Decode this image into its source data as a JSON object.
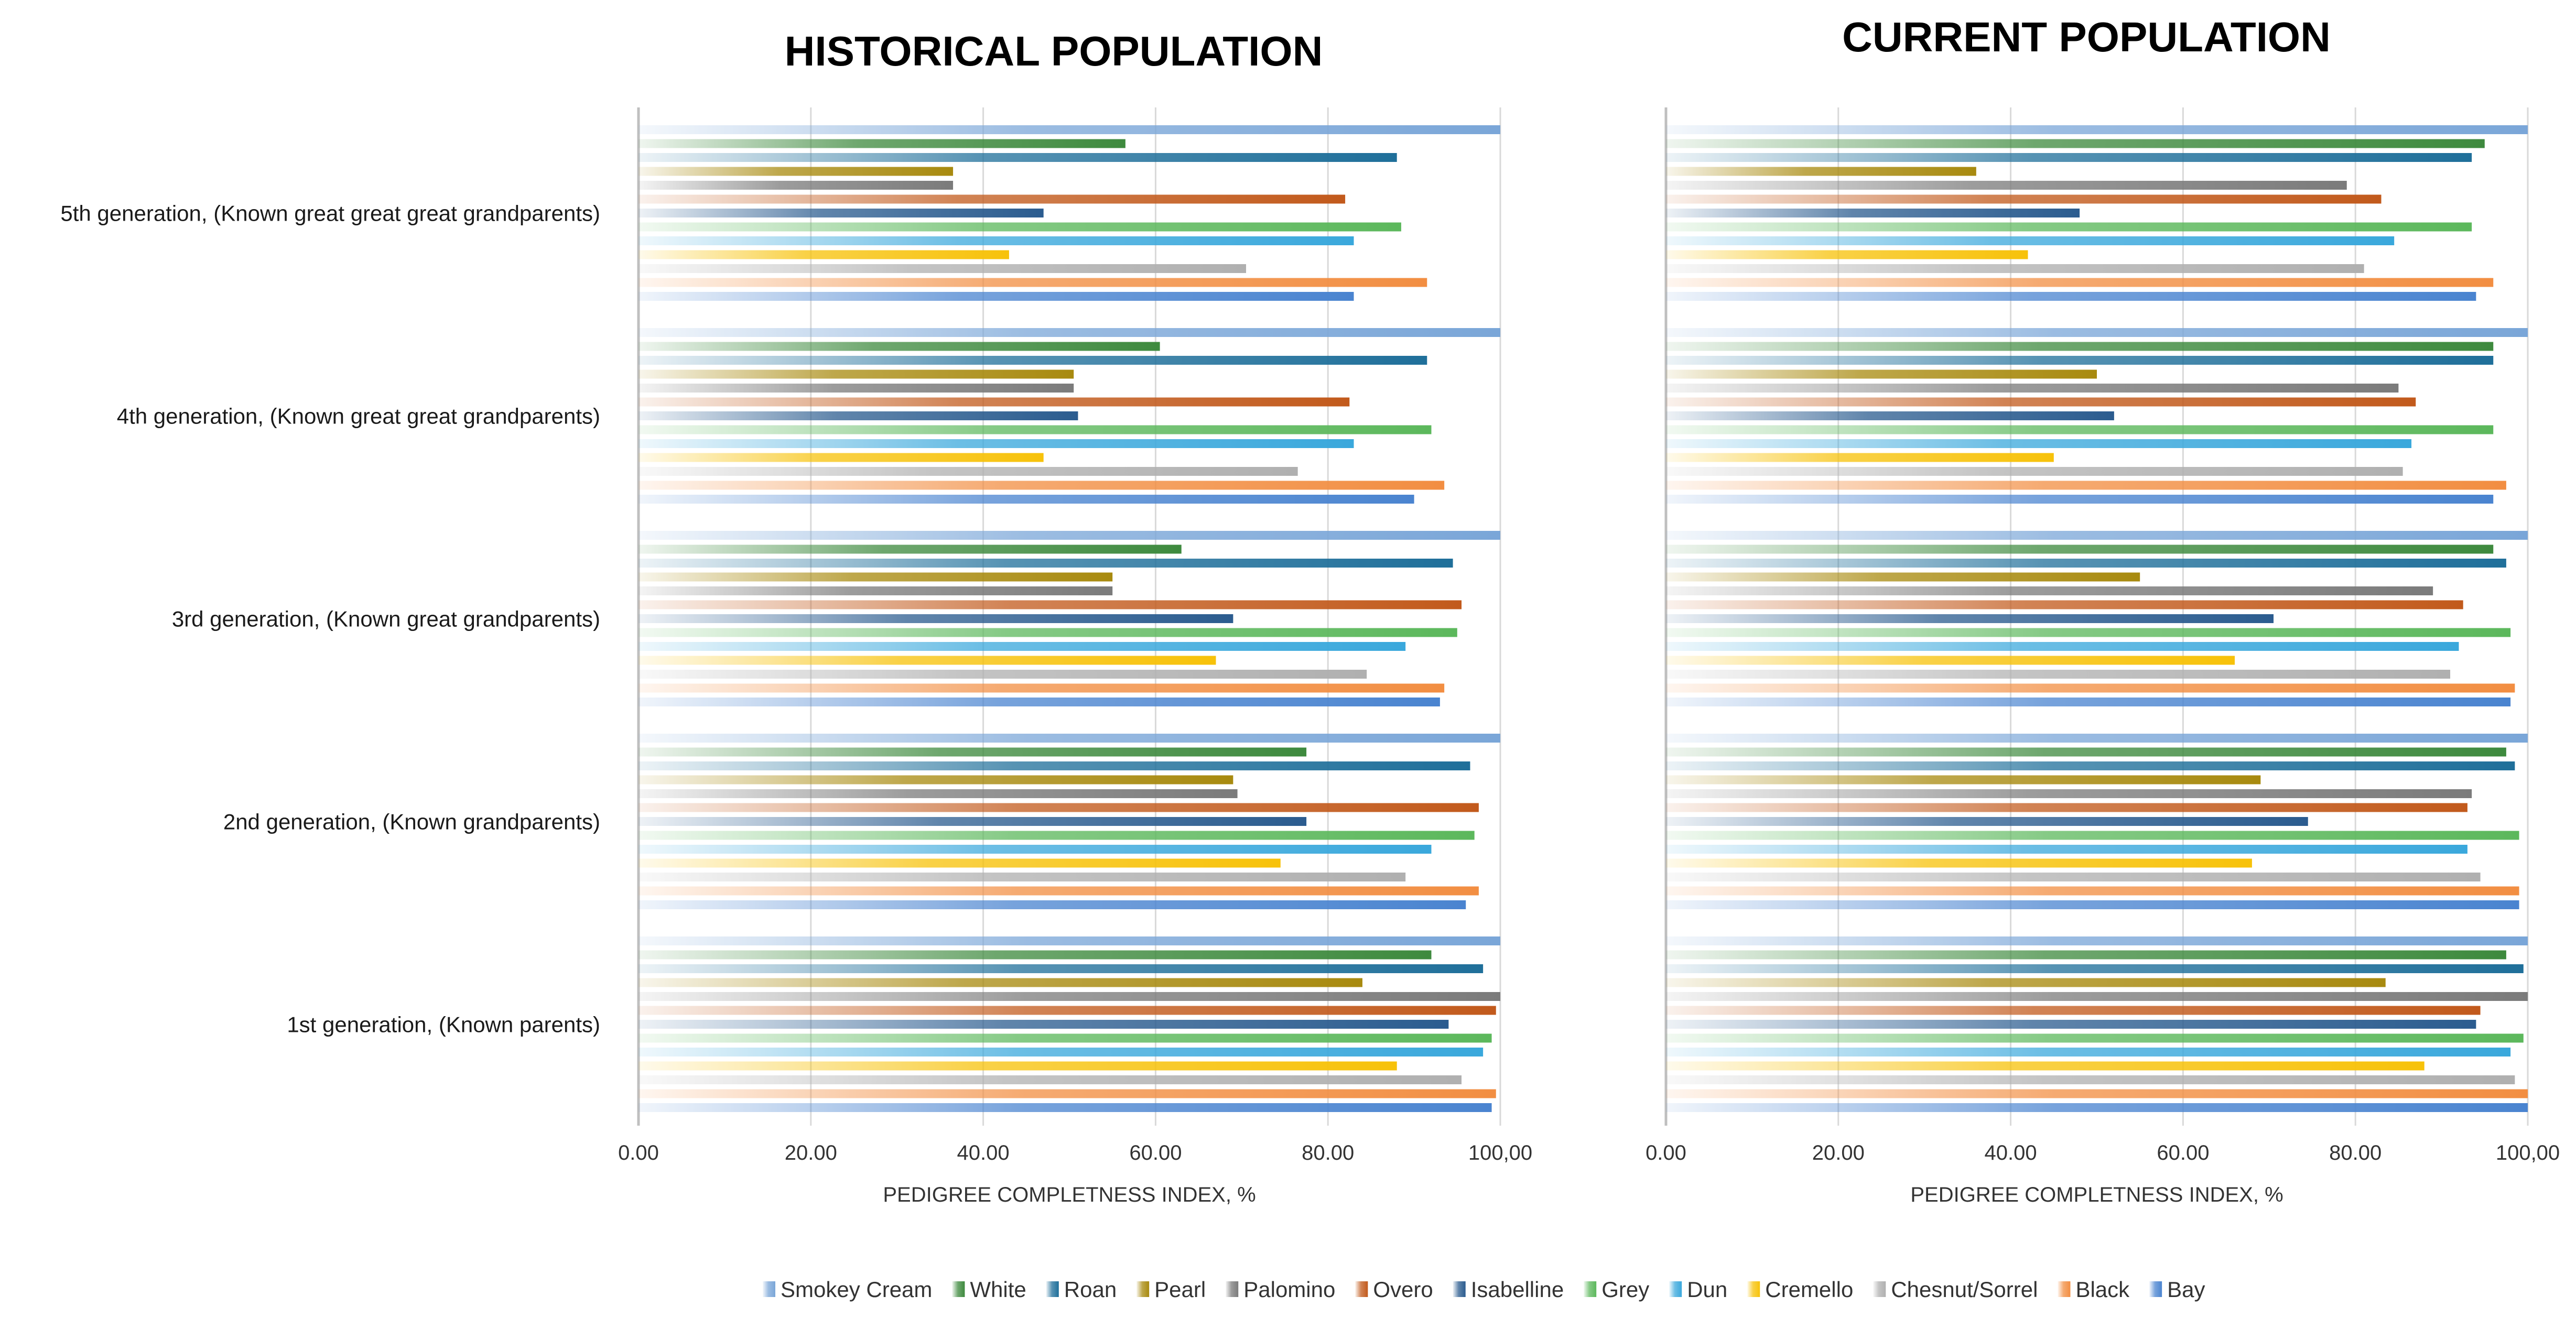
{
  "chart_data": [
    {
      "type": "bar",
      "orientation": "horizontal",
      "title": "HISTORICAL POPULATION",
      "xlabel": "PEDIGREE COMPLETNESS INDEX, %",
      "xlim": [
        0,
        100
      ],
      "xticks": [
        "0.00",
        "20.00",
        "40.00",
        "60.00",
        "80.00",
        "100,00"
      ],
      "categories": [
        "1st generation, (Known parents)",
        "2nd generation, (Known grandparents)",
        "3rd generation, (Known great grandparents)",
        "4th generation, (Known great great grandparents)",
        "5th generation, (Known great great great grandparents)"
      ],
      "grid": true,
      "series": [
        {
          "name": "Bay",
          "values": [
            99,
            96,
            93,
            90,
            83
          ]
        },
        {
          "name": "Black",
          "values": [
            99.5,
            97.5,
            93.5,
            93.5,
            91.5
          ]
        },
        {
          "name": "Chesnut/Sorrel",
          "values": [
            95.5,
            89,
            84.5,
            76.5,
            70.5
          ]
        },
        {
          "name": "Cremello",
          "values": [
            88,
            74.5,
            67,
            47,
            43
          ]
        },
        {
          "name": "Dun",
          "values": [
            98,
            92,
            89,
            83,
            83
          ]
        },
        {
          "name": "Grey",
          "values": [
            99,
            97,
            95,
            92,
            88.5
          ]
        },
        {
          "name": "Isabelline",
          "values": [
            94,
            77.5,
            69,
            51,
            47
          ]
        },
        {
          "name": "Overo",
          "values": [
            99.5,
            97.5,
            95.5,
            82.5,
            82
          ]
        },
        {
          "name": "Palomino",
          "values": [
            100,
            69.5,
            55,
            50.5,
            36.5
          ]
        },
        {
          "name": "Pearl",
          "values": [
            84,
            69,
            55,
            50.5,
            36.5
          ]
        },
        {
          "name": "Roan",
          "values": [
            98,
            96.5,
            94.5,
            91.5,
            88
          ]
        },
        {
          "name": "White",
          "values": [
            92,
            77.5,
            63,
            60.5,
            56.5
          ]
        },
        {
          "name": "Smokey Cream",
          "values": [
            100,
            100,
            100,
            100,
            100
          ]
        }
      ]
    },
    {
      "type": "bar",
      "orientation": "horizontal",
      "title": "CURRENT POPULATION",
      "xlabel": "PEDIGREE COMPLETNESS INDEX, %",
      "xlim": [
        0,
        100
      ],
      "xticks": [
        "0.00",
        "20.00",
        "40.00",
        "60.00",
        "80.00",
        "100,00"
      ],
      "categories": [
        "1st generation, (Known parents)",
        "2nd generation, (Known grandparents)",
        "3rd generation, (Known great grandparents)",
        "4th generation, (Known great great grandparents)",
        "5th generation, (Known great great great grandparents)"
      ],
      "grid": true,
      "series": [
        {
          "name": "Bay",
          "values": [
            100,
            99,
            98,
            96,
            94
          ]
        },
        {
          "name": "Black",
          "values": [
            100,
            99,
            98.5,
            97.5,
            96
          ]
        },
        {
          "name": "Chesnut/Sorrel",
          "values": [
            98.5,
            94.5,
            91,
            85.5,
            81
          ]
        },
        {
          "name": "Cremello",
          "values": [
            88,
            68,
            66,
            45,
            42
          ]
        },
        {
          "name": "Dun",
          "values": [
            98,
            93,
            92,
            86.5,
            84.5
          ]
        },
        {
          "name": "Grey",
          "values": [
            99.5,
            99,
            98,
            96,
            93.5
          ]
        },
        {
          "name": "Isabelline",
          "values": [
            94,
            74.5,
            70.5,
            52,
            48
          ]
        },
        {
          "name": "Overo",
          "values": [
            94.5,
            93,
            92.5,
            87,
            83
          ]
        },
        {
          "name": "Palomino",
          "values": [
            100,
            93.5,
            89,
            85,
            79
          ]
        },
        {
          "name": "Pearl",
          "values": [
            83.5,
            69,
            55,
            50,
            36
          ]
        },
        {
          "name": "Roan",
          "values": [
            99.5,
            98.5,
            97.5,
            96,
            93.5
          ]
        },
        {
          "name": "White",
          "values": [
            97.5,
            97.5,
            96,
            96,
            95
          ]
        },
        {
          "name": "Smokey Cream",
          "values": [
            100,
            100,
            100,
            100,
            100
          ]
        }
      ]
    }
  ],
  "legend": {
    "placement": "bottom",
    "items": [
      {
        "name": "Smokey Cream",
        "color": "#7aa6d8"
      },
      {
        "name": "White",
        "color": "#3e8a3e"
      },
      {
        "name": "Roan",
        "color": "#1f6f9a"
      },
      {
        "name": "Pearl",
        "color": "#a88a0f"
      },
      {
        "name": "Palomino",
        "color": "#7b7b7b"
      },
      {
        "name": "Overo",
        "color": "#c25a1c"
      },
      {
        "name": "Isabelline",
        "color": "#2b5c8f"
      },
      {
        "name": "Grey",
        "color": "#5cb85c"
      },
      {
        "name": "Dun",
        "color": "#3aa8dc"
      },
      {
        "name": "Cremello",
        "color": "#f7c20a"
      },
      {
        "name": "Chesnut/Sorrel",
        "color": "#b0b0b0"
      },
      {
        "name": "Black",
        "color": "#f28e42"
      },
      {
        "name": "Bay",
        "color": "#4a84d0"
      }
    ]
  }
}
